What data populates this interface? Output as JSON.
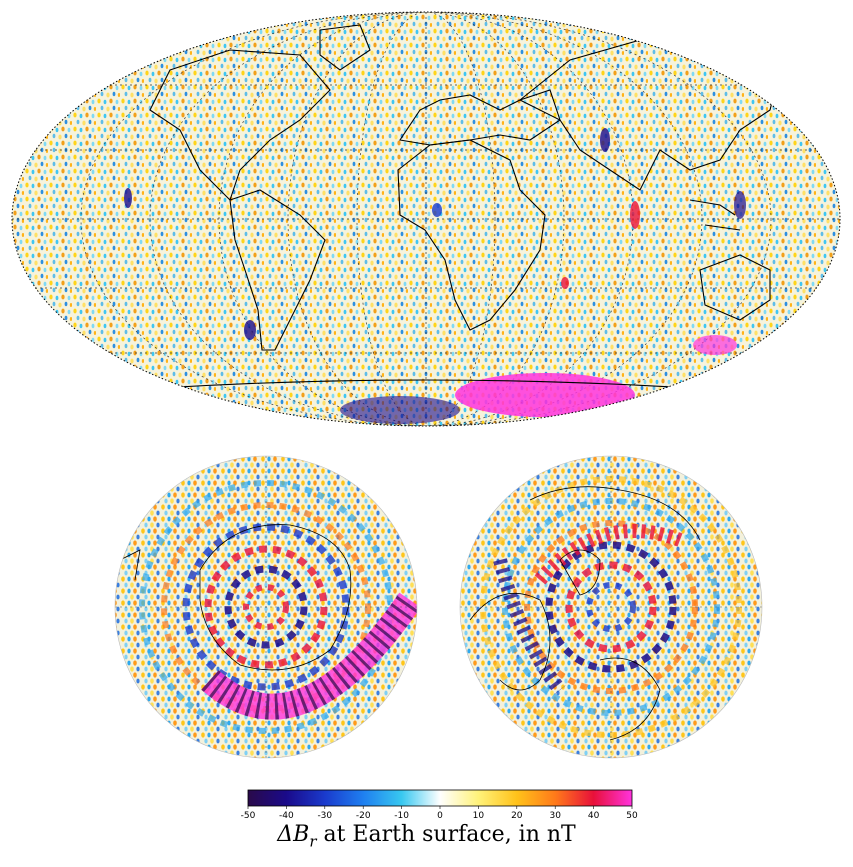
{
  "figure": {
    "maps": [
      {
        "id": "global",
        "projection": "Mollweide",
        "label": "global-map"
      },
      {
        "id": "south-pole",
        "projection": "polar-azimuthal",
        "label": "south-polar-map"
      },
      {
        "id": "north-pole",
        "projection": "polar-azimuthal",
        "label": "north-polar-map"
      }
    ],
    "colorbar": {
      "ticks": [
        "-50",
        "-40",
        "-30",
        "-20",
        "-10",
        "0",
        "10",
        "20",
        "30",
        "40",
        "50"
      ],
      "colors": [
        "#2a0a4a",
        "#1a0a8a",
        "#1a3acc",
        "#1f7ff0",
        "#38c8f0",
        "#ffffff",
        "#fff27a",
        "#ffc21a",
        "#ff7a1a",
        "#e8103a",
        "#ff33dd"
      ]
    },
    "caption": {
      "symbol": "ΔB",
      "subscript": "r",
      "text": " at Earth surface, in nT"
    }
  }
}
